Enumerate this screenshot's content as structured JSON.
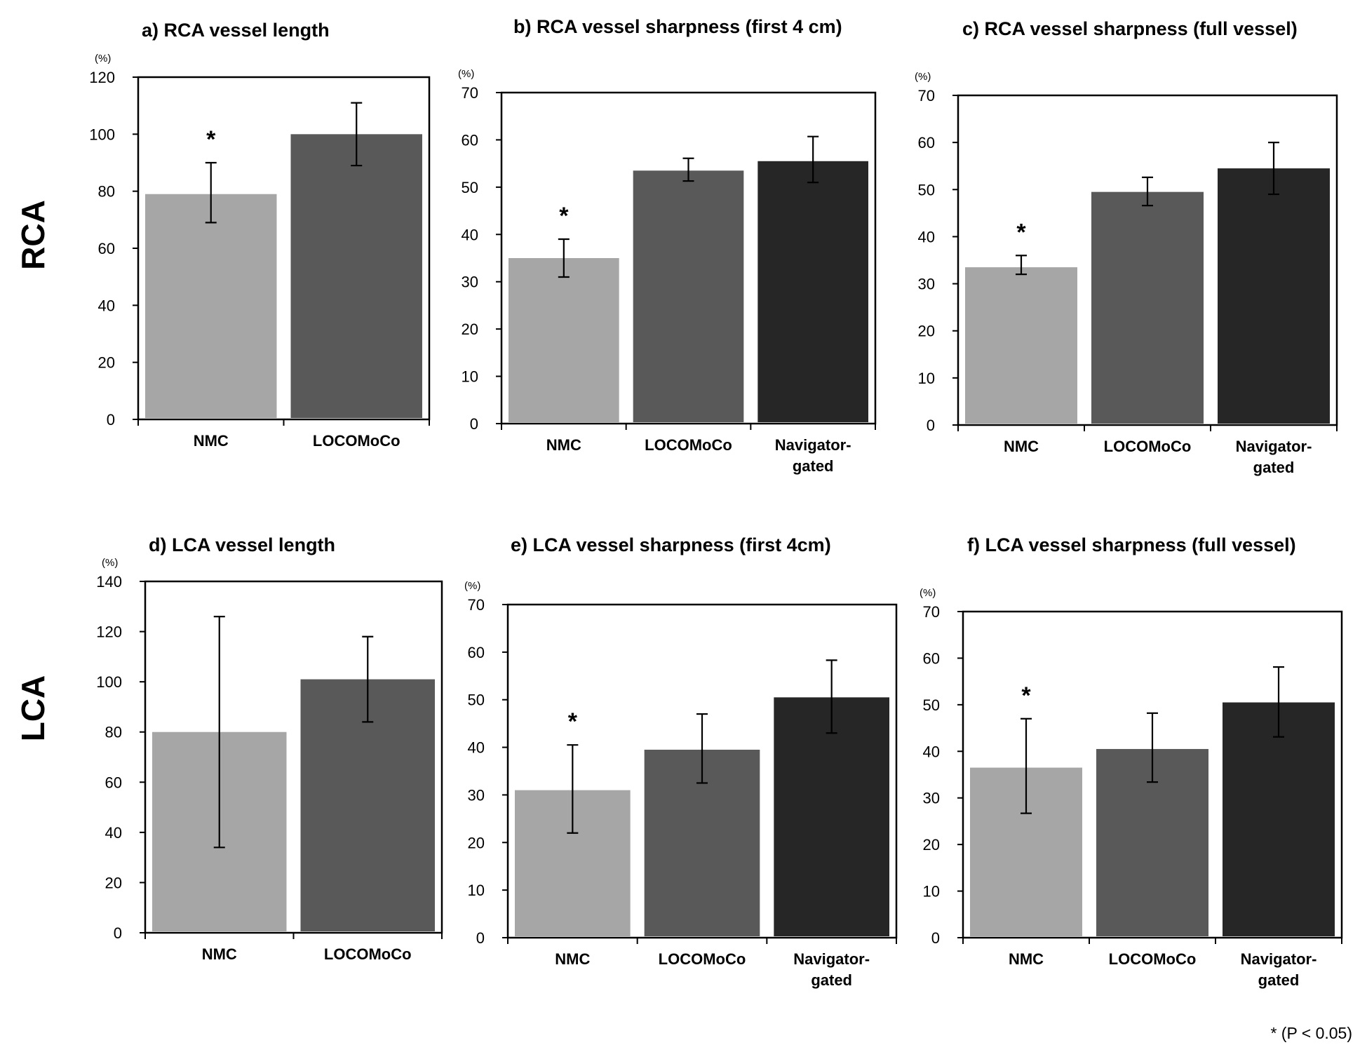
{
  "row_labels": [
    "RCA",
    "LCA"
  ],
  "footnote": "* (P < 0.05)",
  "colors": {
    "NMC": "#a6a6a6",
    "LOCOMoCo": "#595959",
    "Navigator-gated": "#262626"
  },
  "chart_data": [
    {
      "type": "bar",
      "title": "a) RCA vessel length",
      "ylabel": "(%)",
      "ylim": [
        0,
        120
      ],
      "yticks": [
        0,
        20,
        40,
        60,
        80,
        100,
        120
      ],
      "categories": [
        [
          "NMC"
        ],
        [
          "LOCOMoCo"
        ]
      ],
      "values": [
        79,
        100
      ],
      "errors": [
        [
          69,
          90
        ],
        [
          89,
          111
        ]
      ],
      "significant": [
        true,
        false
      ]
    },
    {
      "type": "bar",
      "title": "b) RCA vessel sharpness (first 4 cm)",
      "ylabel": "(%)",
      "ylim": [
        0,
        70
      ],
      "yticks": [
        0,
        10,
        20,
        30,
        40,
        50,
        60,
        70
      ],
      "categories": [
        [
          "NMC"
        ],
        [
          "LOCOMoCo"
        ],
        [
          "Navigator-",
          "gated"
        ]
      ],
      "values": [
        35,
        53.5,
        55.5
      ],
      "errors": [
        [
          31,
          39
        ],
        [
          51.3,
          56.1
        ],
        [
          51,
          60.7
        ]
      ],
      "significant": [
        true,
        false,
        false
      ]
    },
    {
      "type": "bar",
      "title": "c) RCA vessel sharpness  (full vessel)",
      "ylabel": "(%)",
      "ylim": [
        0,
        70
      ],
      "yticks": [
        0,
        10,
        20,
        30,
        40,
        50,
        60,
        70
      ],
      "categories": [
        [
          "NMC"
        ],
        [
          "LOCOMoCo"
        ],
        [
          "Navigator-",
          "gated"
        ]
      ],
      "values": [
        33.5,
        49.5,
        54.5
      ],
      "errors": [
        [
          32,
          36
        ],
        [
          46.6,
          52.6
        ],
        [
          49,
          60
        ]
      ],
      "significant": [
        true,
        false,
        false
      ]
    },
    {
      "type": "bar",
      "title": "d) LCA vessel length",
      "ylabel": "(%)",
      "ylim": [
        0,
        140
      ],
      "yticks": [
        0,
        20,
        40,
        60,
        80,
        100,
        120,
        140
      ],
      "categories": [
        [
          "NMC"
        ],
        [
          "LOCOMoCo"
        ]
      ],
      "values": [
        80,
        101
      ],
      "errors": [
        [
          34,
          126
        ],
        [
          84,
          118
        ]
      ],
      "significant": [
        false,
        false
      ]
    },
    {
      "type": "bar",
      "title": "e) LCA vessel sharpness (first 4cm)",
      "ylabel": "(%)",
      "ylim": [
        0,
        70
      ],
      "yticks": [
        0,
        10,
        20,
        30,
        40,
        50,
        60,
        70
      ],
      "categories": [
        [
          "NMC"
        ],
        [
          "LOCOMoCo"
        ],
        [
          "Navigator-",
          "gated"
        ]
      ],
      "values": [
        31,
        39.5,
        50.5
      ],
      "errors": [
        [
          22,
          40.5
        ],
        [
          32.5,
          47
        ],
        [
          43,
          58.3
        ]
      ],
      "significant": [
        true,
        false,
        false
      ]
    },
    {
      "type": "bar",
      "title": "f) LCA vessel sharpness  (full vessel)",
      "ylabel": "(%)",
      "ylim": [
        0,
        70
      ],
      "yticks": [
        0,
        10,
        20,
        30,
        40,
        50,
        60,
        70
      ],
      "categories": [
        [
          "NMC"
        ],
        [
          "LOCOMoCo"
        ],
        [
          "Navigator-",
          "gated"
        ]
      ],
      "values": [
        36.5,
        40.5,
        50.5
      ],
      "errors": [
        [
          26.7,
          47
        ],
        [
          33.4,
          48.2
        ],
        [
          43.1,
          58.1
        ]
      ],
      "significant": [
        true,
        false,
        false
      ]
    }
  ]
}
